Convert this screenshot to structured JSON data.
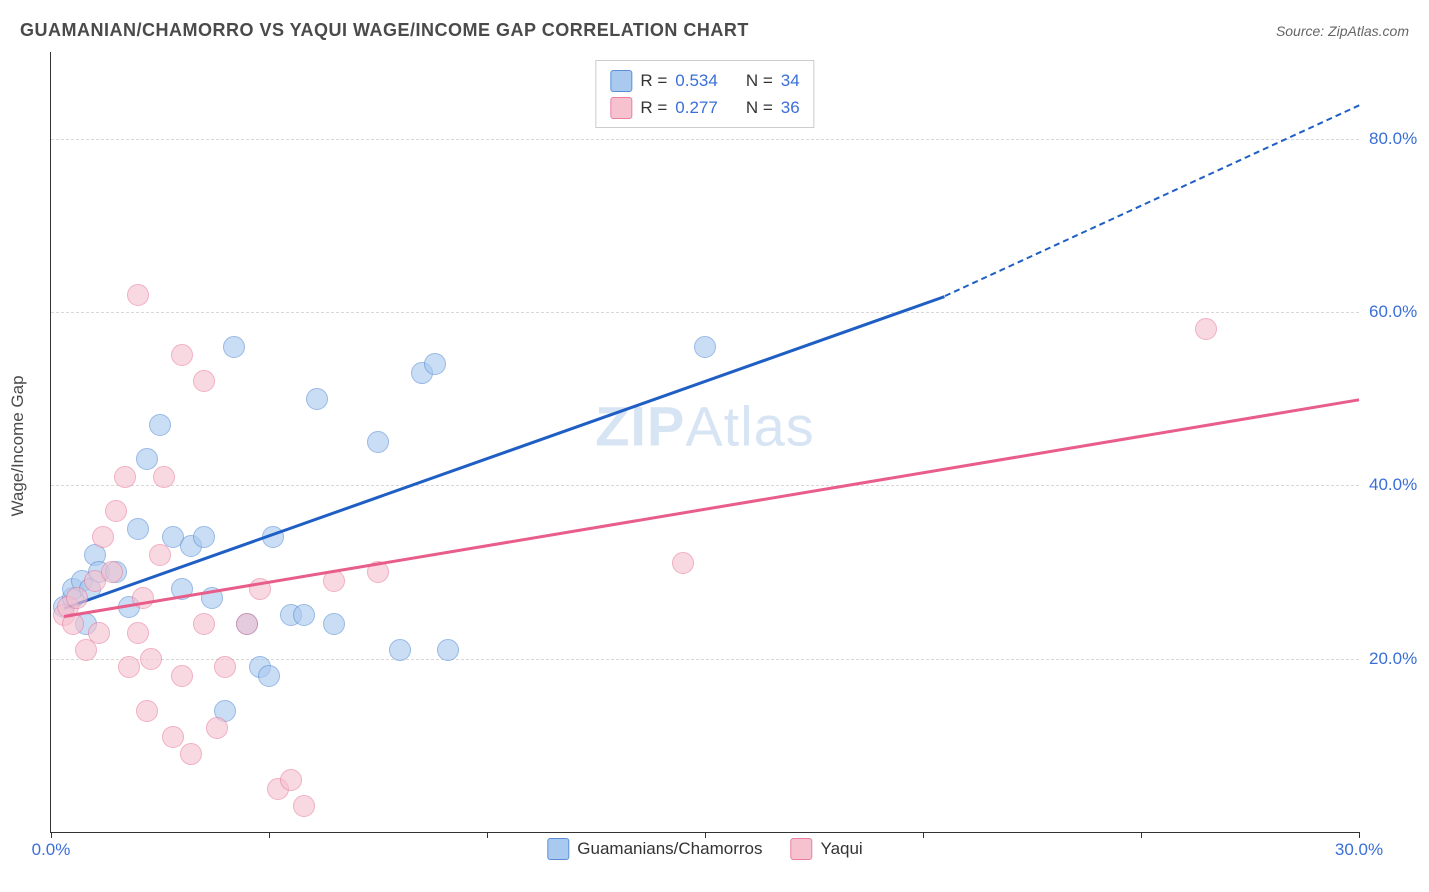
{
  "header": {
    "title": "GUAMANIAN/CHAMORRO VS YAQUI WAGE/INCOME GAP CORRELATION CHART",
    "source": "Source: ZipAtlas.com"
  },
  "watermark": {
    "zip": "ZIP",
    "atlas": "Atlas"
  },
  "chart": {
    "type": "scatter",
    "y_axis_title": "Wage/Income Gap",
    "background_color": "#ffffff",
    "grid_color": "#d8d8d8",
    "axis_color": "#333333",
    "tick_label_color": "#3a6fd8",
    "tick_fontsize": 17,
    "axis_title_fontsize": 17,
    "xlim": [
      0,
      30
    ],
    "ylim": [
      0,
      90
    ],
    "x_ticks": [
      {
        "pos": 0,
        "label": "0.0%"
      },
      {
        "pos": 5,
        "label": ""
      },
      {
        "pos": 10,
        "label": ""
      },
      {
        "pos": 15,
        "label": ""
      },
      {
        "pos": 20,
        "label": ""
      },
      {
        "pos": 25,
        "label": ""
      },
      {
        "pos": 30,
        "label": "30.0%"
      }
    ],
    "y_ticks": [
      {
        "pos": 20,
        "label": "20.0%"
      },
      {
        "pos": 40,
        "label": "40.0%"
      },
      {
        "pos": 60,
        "label": "60.0%"
      },
      {
        "pos": 80,
        "label": "80.0%"
      }
    ],
    "series": [
      {
        "id": "guamanians",
        "label": "Guamanians/Chamorros",
        "r": "0.534",
        "n": "34",
        "point_fill": "#a9c9ee",
        "point_stroke": "#5a8fd6",
        "line_color": "#1f5fc4",
        "points": [
          {
            "x": 0.3,
            "y": 26
          },
          {
            "x": 0.5,
            "y": 27
          },
          {
            "x": 0.5,
            "y": 28
          },
          {
            "x": 0.7,
            "y": 29
          },
          {
            "x": 0.8,
            "y": 24
          },
          {
            "x": 0.9,
            "y": 28
          },
          {
            "x": 1.0,
            "y": 32
          },
          {
            "x": 1.1,
            "y": 30
          },
          {
            "x": 1.5,
            "y": 30
          },
          {
            "x": 1.8,
            "y": 26
          },
          {
            "x": 2.0,
            "y": 35
          },
          {
            "x": 2.2,
            "y": 43
          },
          {
            "x": 2.5,
            "y": 47
          },
          {
            "x": 2.8,
            "y": 34
          },
          {
            "x": 3.0,
            "y": 28
          },
          {
            "x": 3.2,
            "y": 33
          },
          {
            "x": 3.5,
            "y": 34
          },
          {
            "x": 3.7,
            "y": 27
          },
          {
            "x": 4.0,
            "y": 14
          },
          {
            "x": 4.2,
            "y": 56
          },
          {
            "x": 4.5,
            "y": 24
          },
          {
            "x": 4.8,
            "y": 19
          },
          {
            "x": 5.0,
            "y": 18
          },
          {
            "x": 5.1,
            "y": 34
          },
          {
            "x": 5.5,
            "y": 25
          },
          {
            "x": 5.8,
            "y": 25
          },
          {
            "x": 6.1,
            "y": 50
          },
          {
            "x": 6.5,
            "y": 24
          },
          {
            "x": 7.5,
            "y": 45
          },
          {
            "x": 8.0,
            "y": 21
          },
          {
            "x": 8.5,
            "y": 53
          },
          {
            "x": 8.8,
            "y": 54
          },
          {
            "x": 9.1,
            "y": 21
          },
          {
            "x": 15.0,
            "y": 56
          }
        ],
        "trend": {
          "x1": 0.3,
          "y1": 26,
          "x2": 20.5,
          "y2": 62,
          "x2_dash": 30,
          "y2_dash": 84
        }
      },
      {
        "id": "yaqui",
        "label": "Yaqui",
        "r": "0.277",
        "n": "36",
        "point_fill": "#f6c2d0",
        "point_stroke": "#e87f9f",
        "line_color": "#e85d8a",
        "points": [
          {
            "x": 0.3,
            "y": 25
          },
          {
            "x": 0.4,
            "y": 26
          },
          {
            "x": 0.5,
            "y": 24
          },
          {
            "x": 0.6,
            "y": 27
          },
          {
            "x": 0.8,
            "y": 21
          },
          {
            "x": 1.0,
            "y": 29
          },
          {
            "x": 1.1,
            "y": 23
          },
          {
            "x": 1.2,
            "y": 34
          },
          {
            "x": 1.4,
            "y": 30
          },
          {
            "x": 1.5,
            "y": 37
          },
          {
            "x": 1.7,
            "y": 41
          },
          {
            "x": 1.8,
            "y": 19
          },
          {
            "x": 2.0,
            "y": 62
          },
          {
            "x": 2.0,
            "y": 23
          },
          {
            "x": 2.1,
            "y": 27
          },
          {
            "x": 2.2,
            "y": 14
          },
          {
            "x": 2.3,
            "y": 20
          },
          {
            "x": 2.5,
            "y": 32
          },
          {
            "x": 2.6,
            "y": 41
          },
          {
            "x": 2.8,
            "y": 11
          },
          {
            "x": 3.0,
            "y": 18
          },
          {
            "x": 3.0,
            "y": 55
          },
          {
            "x": 3.2,
            "y": 9
          },
          {
            "x": 3.5,
            "y": 24
          },
          {
            "x": 3.5,
            "y": 52
          },
          {
            "x": 3.8,
            "y": 12
          },
          {
            "x": 4.0,
            "y": 19
          },
          {
            "x": 4.5,
            "y": 24
          },
          {
            "x": 4.8,
            "y": 28
          },
          {
            "x": 5.2,
            "y": 5
          },
          {
            "x": 5.8,
            "y": 3
          },
          {
            "x": 5.5,
            "y": 6
          },
          {
            "x": 6.5,
            "y": 29
          },
          {
            "x": 7.5,
            "y": 30
          },
          {
            "x": 14.5,
            "y": 31
          },
          {
            "x": 26.5,
            "y": 58
          }
        ],
        "trend": {
          "x1": 0.3,
          "y1": 25,
          "x2": 30,
          "y2": 50
        }
      }
    ],
    "legend_r": {
      "r_label": "R =",
      "n_label": "N ="
    }
  }
}
